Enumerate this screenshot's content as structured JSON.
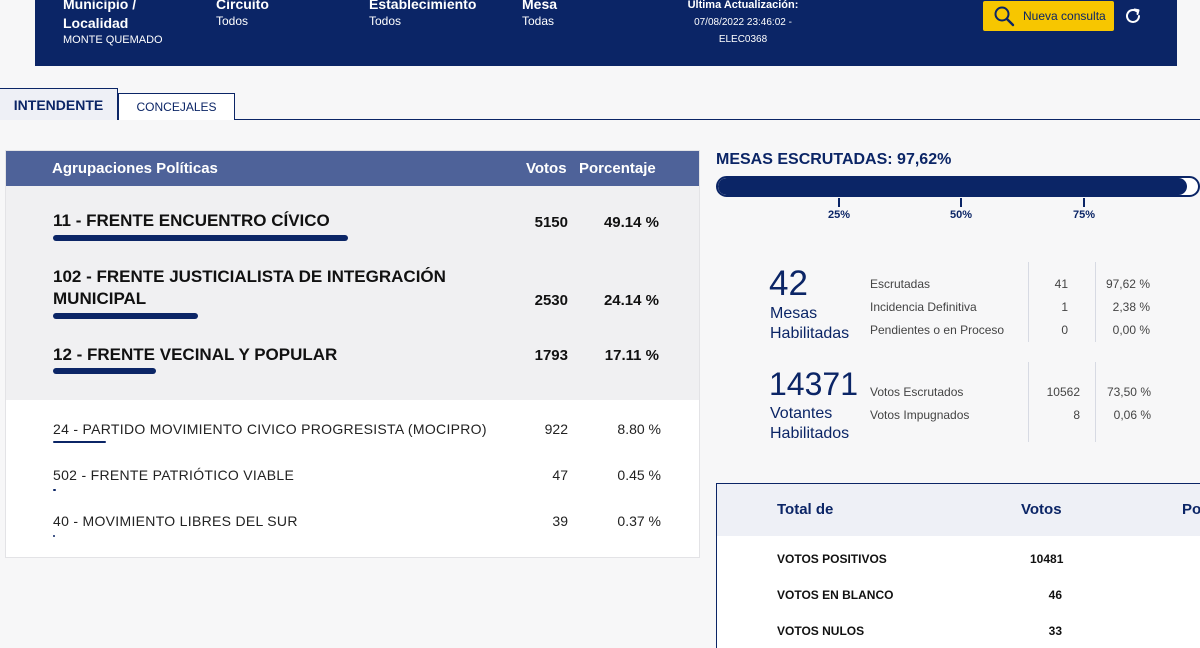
{
  "header": {
    "municipio_title": "Municipio / Localidad",
    "municipio_value": "MONTE QUEMADO",
    "circuito_title": "Circuito",
    "circuito_value": "Todos",
    "establecimiento_title": "Establecimiento",
    "establecimiento_value": "Todos",
    "mesa_title": "Mesa",
    "mesa_value": "Todas",
    "update_title": "Ultima Actualización:",
    "update_value": "07/08/2022 23:46:02 -",
    "update_code": "ELEC0368",
    "nueva_consulta": "Nueva consulta",
    "accent": "#f7c600",
    "brand": "#0b2566"
  },
  "tabs": [
    {
      "label": "INTENDENTE",
      "active": true
    },
    {
      "label": "CONCEJALES",
      "active": false
    }
  ],
  "results": {
    "col_agrupaciones": "Agrupaciones Políticas",
    "col_votos": "Votos",
    "col_porcentaje": "Porcentaje",
    "top": [
      {
        "name": "11 - FRENTE ENCUENTRO CÍVICO",
        "votes": "5150",
        "pct": "49.14 %",
        "share": 49.14
      },
      {
        "name": "102 - FRENTE JUSTICIALISTA DE INTEGRACIÓN MUNICIPAL",
        "votes": "2530",
        "pct": "24.14 %",
        "share": 24.14
      },
      {
        "name": "12 - FRENTE VECINAL Y POPULAR",
        "votes": "1793",
        "pct": "17.11 %",
        "share": 17.11
      }
    ],
    "others": [
      {
        "name": "24 - PARTIDO MOVIMIENTO CIVICO PROGRESISTA (MOCIPRO)",
        "votes": "922",
        "pct": "8.80 %",
        "share": 8.8
      },
      {
        "name": "502 - FRENTE PATRIÓTICO VIABLE",
        "votes": "47",
        "pct": "0.45 %",
        "share": 0.45
      },
      {
        "name": "40 - MOVIMIENTO LIBRES DEL SUR",
        "votes": "39",
        "pct": "0.37 %",
        "share": 0.37
      }
    ]
  },
  "mesas": {
    "title": "MESAS ESCRUTADAS: 97,62%",
    "progress": 97.62,
    "ticks": [
      "25%",
      "50%",
      "75%"
    ],
    "habilitadas_count": "42",
    "habilitadas_label1": "Mesas",
    "habilitadas_label2": "Habilitadas",
    "rows": [
      {
        "label": "Escrutadas",
        "n": "41",
        "p": "97,62 %"
      },
      {
        "label": "Incidencia Definitiva",
        "n": "1",
        "p": "2,38 %"
      },
      {
        "label": "Pendientes o en Proceso",
        "n": "0",
        "p": "0,00 %"
      }
    ]
  },
  "votantes": {
    "count": "14371",
    "label1": "Votantes",
    "label2": "Habilitados",
    "rows": [
      {
        "label": "Votos Escrutados",
        "n": "10562",
        "p": "73,50 %"
      },
      {
        "label": "Votos Impugnados",
        "n": "8",
        "p": "0,06 %"
      }
    ]
  },
  "totals": {
    "col_total": "Total de",
    "col_votos": "Votos",
    "col_po": "Po",
    "rows": [
      {
        "label": "VOTOS POSITIVOS",
        "v": "10481"
      },
      {
        "label": "VOTOS EN BLANCO",
        "v": "46"
      },
      {
        "label": "VOTOS NULOS",
        "v": "33"
      }
    ]
  }
}
